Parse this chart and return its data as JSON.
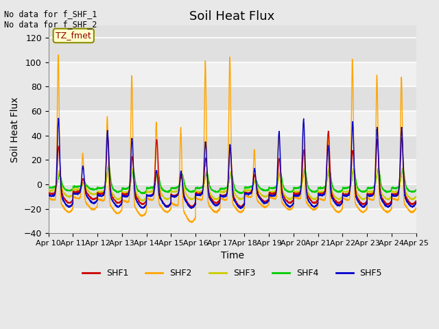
{
  "title": "Soil Heat Flux",
  "ylabel": "Soil Heat Flux",
  "xlabel": "Time",
  "text_top_left": "No data for f_SHF_1\nNo data for f_SHF_2",
  "legend_box_label": "TZ_fmet",
  "ylim": [
    -40,
    130
  ],
  "yticks": [
    -40,
    -20,
    0,
    20,
    40,
    60,
    80,
    100,
    120
  ],
  "xtick_labels": [
    "Apr 10",
    "Apr 11",
    "Apr 12",
    "Apr 13",
    "Apr 14",
    "Apr 15",
    "Apr 16",
    "Apr 17",
    "Apr 18",
    "Apr 19",
    "Apr 20",
    "Apr 21",
    "Apr 22",
    "Apr 23",
    "Apr 24",
    "Apr 25"
  ],
  "series_colors": {
    "SHF1": "#cc0000",
    "SHF2": "#ffa500",
    "SHF3": "#cccc00",
    "SHF4": "#00cc00",
    "SHF5": "#0000cc"
  },
  "background_color": "#e8e8e8",
  "plot_bg_color": "#e0e0e0",
  "grid_color": "#ffffff",
  "n_days": 15,
  "n_pts": 288,
  "shf2_peaks": [
    120,
    38,
    70,
    105,
    65,
    65,
    115,
    118,
    40,
    53,
    61,
    54,
    116,
    103,
    102
  ],
  "shf1_peaks": [
    38,
    10,
    46,
    30,
    45,
    16,
    28,
    37,
    14,
    28,
    35,
    50,
    35,
    44,
    45
  ],
  "shf3_peaks": [
    15,
    5,
    20,
    18,
    16,
    13,
    15,
    15,
    7,
    15,
    18,
    18,
    18,
    18,
    18
  ],
  "shf4_peaks": [
    10,
    3,
    17,
    14,
    12,
    10,
    12,
    12,
    5,
    12,
    14,
    14,
    14,
    15,
    15
  ],
  "shf5_peaks": [
    63,
    22,
    53,
    47,
    20,
    20,
    43,
    42,
    20,
    52,
    62,
    40,
    60,
    55,
    55
  ],
  "shf2_troughs": [
    -22,
    -20,
    -23,
    -25,
    -22,
    -30,
    -22,
    -22,
    -18,
    -20,
    -20,
    -22,
    -22,
    -22,
    -22
  ],
  "shf1_troughs": [
    -15,
    -12,
    -15,
    -16,
    -18,
    -18,
    -15,
    -18,
    -14,
    -15,
    -15,
    -15,
    -16,
    -16,
    -16
  ],
  "shf3_troughs": [
    -10,
    -8,
    -12,
    -13,
    -12,
    -12,
    -12,
    -12,
    -10,
    -12,
    -12,
    -12,
    -12,
    -12,
    -12
  ],
  "shf4_troughs": [
    -5,
    -4,
    -6,
    -7,
    -6,
    -6,
    -6,
    -7,
    -5,
    -6,
    -6,
    -6,
    -6,
    -6,
    -6
  ],
  "shf5_troughs": [
    -18,
    -15,
    -18,
    -19,
    -18,
    -19,
    -17,
    -19,
    -15,
    -18,
    -18,
    -17,
    -18,
    -18,
    -18
  ]
}
